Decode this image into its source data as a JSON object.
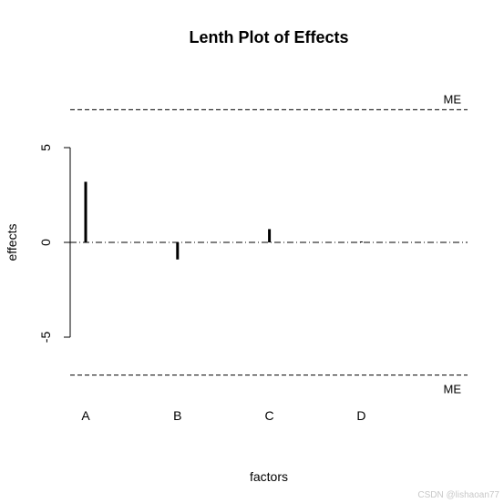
{
  "chart_data": {
    "type": "bar",
    "title": "Lenth Plot of Effects",
    "xlabel": "factors",
    "ylabel": "effects",
    "categories": [
      "A",
      "B",
      "C",
      "D"
    ],
    "values": [
      3.2,
      -0.9,
      0.7,
      0.05
    ],
    "yticks": [
      -5,
      0,
      5
    ],
    "ylim": [
      -7.1,
      7.1
    ],
    "reference_lines": [
      {
        "label": "ME",
        "value": 7.0,
        "style": "dashed"
      },
      {
        "label": "ME",
        "value": -7.0,
        "style": "dashed"
      },
      {
        "label": "",
        "value": 0,
        "style": "dotdash"
      }
    ],
    "grid": false,
    "legend": "none"
  },
  "watermark": "CSDN @lishaoan77"
}
